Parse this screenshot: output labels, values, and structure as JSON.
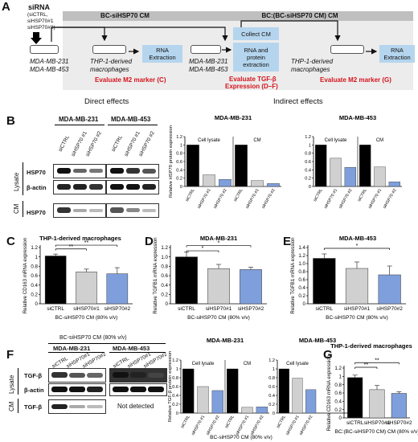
{
  "panels": {
    "a": "A",
    "b": "B",
    "c": "C",
    "d": "D",
    "e": "E",
    "f": "F",
    "g": "G"
  },
  "schematic": {
    "sirna_title": "siRNA",
    "sirna_list": [
      "(siCTRL,",
      "siHSP70#1",
      "siHSP70#2)"
    ],
    "cells_line1": "MDA-MB-231",
    "cells_line2": "MDA-MB-453",
    "direct_header": "BC-siHSP70 CM",
    "indirect_header": "BC:(BC-siHSP70 CM) CM",
    "thp1_line1": "THP-1-derived",
    "thp1_line2": "macrophages",
    "rna_extraction": "RNA Extraction",
    "eval_m2_c": "Evaluate M2 marker (C)",
    "direct_effects": "Direct effects",
    "collect_cm": "Collect CM",
    "rna_protein": [
      "RNA and",
      "protein",
      "extraction"
    ],
    "eval_tgf_1": "Evaluate TGF-β",
    "eval_tgf_2": "Expression (D–F)",
    "eval_m2_g": "Evaluate M2 marker (G)",
    "indirect_effects": "Indirect effects"
  },
  "blot_b": {
    "cell1": "MDA-MB-231",
    "cell2": "MDA-MB-453",
    "lanes": [
      "siCTRL",
      "siHSP70 #1",
      "siHSP70 #2"
    ],
    "row_hsp70": "HSP70",
    "row_actin": "β-actin",
    "group_lysate": "Lysate",
    "group_cm": "CM"
  },
  "blot_f": {
    "top": "BC-siHSP70 CM (80% v/v)",
    "cell1": "MDA-MB-231",
    "cell2": "MDA-MB-453",
    "lanes": [
      "siCTRL",
      "siHSP70#1",
      "siHSP70#2"
    ],
    "row_tgf": "TGF-β",
    "row_actin": "β-actin",
    "group_lysate": "Lysate",
    "group_cm": "CM",
    "not_detected": "Not detected"
  },
  "chart_data": [
    {
      "id": "B-right",
      "type": "bar",
      "ylabel": "Relative HSP70 protein expression",
      "ylim": [
        0,
        1.2
      ],
      "yticks": [
        "0",
        "0.2",
        "0.4",
        "0.6",
        "0.8",
        "1",
        "1.2"
      ],
      "groups": [
        {
          "title": "MDA-MB-231",
          "subgroups": [
            {
              "label": "Cell lysate",
              "categories": [
                "siCTRL",
                "siHSP70 #1",
                "siHSP70 #2"
              ],
              "values": [
                1.0,
                0.28,
                0.17
              ]
            },
            {
              "label": "CM",
              "categories": [
                "siCTRL",
                "siHSP70 #1",
                "siHSP70 #2"
              ],
              "values": [
                1.0,
                0.14,
                0.07
              ]
            }
          ]
        },
        {
          "title": "MDA-MB-453",
          "subgroups": [
            {
              "label": "Cell lysate",
              "categories": [
                "siCTRL",
                "siHSP70 #1",
                "siHSP70 #2"
              ],
              "values": [
                1.0,
                0.68,
                0.46
              ]
            },
            {
              "label": "CM",
              "categories": [
                "siCTRL",
                "siHSP70 #1",
                "siHSP70 #2"
              ],
              "values": [
                1.0,
                0.47,
                0.11
              ]
            }
          ]
        }
      ],
      "colors": [
        "#000000",
        "#d0d0d0",
        "#7f9fdc"
      ]
    },
    {
      "id": "C",
      "type": "bar",
      "title": "THP-1-derived macrophages",
      "ylabel": "Relative CD163 mRNA expression",
      "xlabel": "BC-siHSP70 CM (80% v/v)",
      "ylim": [
        0,
        1.2
      ],
      "yticks": [
        "0",
        "0.2",
        "0.4",
        "0.6",
        "0.8",
        "1",
        "1.2"
      ],
      "categories": [
        "siCTRL",
        "siHSP70#1",
        "siHSP70#2"
      ],
      "values": [
        1.02,
        0.68,
        0.64
      ],
      "errors": [
        0.04,
        0.06,
        0.13
      ],
      "significance": [
        "**",
        "**"
      ],
      "colors": [
        "#000000",
        "#d0d0d0",
        "#7f9fdc"
      ]
    },
    {
      "id": "D",
      "type": "bar",
      "title": "MDA-MB-231",
      "ylabel": "Relative TGFB1 mRNA expression",
      "xlabel": "BC-siHSP70 CM (80% v/v)",
      "ylim": [
        0,
        1.2
      ],
      "yticks": [
        "0",
        "0.2",
        "0.4",
        "0.6",
        "0.8",
        "1.0",
        "1.2"
      ],
      "categories": [
        "siCTRL",
        "siHSP70#1",
        "siHSP70#2"
      ],
      "values": [
        1.0,
        0.75,
        0.73
      ],
      "errors": [
        0.1,
        0.09,
        0.05
      ],
      "significance": [
        "*",
        "*"
      ],
      "colors": [
        "#000000",
        "#d0d0d0",
        "#7f9fdc"
      ]
    },
    {
      "id": "E",
      "type": "bar",
      "title": "MDA-MB-453",
      "ylabel": "Relative TGFB1 mRNA expression",
      "xlabel": "BC-siHSP70 CM (80% v/v)",
      "ylim": [
        0,
        1.4
      ],
      "yticks": [
        "0",
        "0.2",
        "0.4",
        "0.6",
        "0.8",
        "1.0",
        "1.2",
        "1.4"
      ],
      "categories": [
        "siCTRL",
        "siHSP70#1",
        "siHSP70#2"
      ],
      "values": [
        1.13,
        0.88,
        0.72
      ],
      "errors": [
        0.11,
        0.16,
        0.22
      ],
      "significance": [
        "*"
      ],
      "colors": [
        "#000000",
        "#d0d0d0",
        "#7f9fdc"
      ]
    },
    {
      "id": "F-right",
      "type": "bar",
      "ylabel": "Relative TGF-β protein expression",
      "xlabel": "BC-siHSP70 CM (80% v/v)",
      "ylim": [
        0,
        1.2
      ],
      "yticks": [
        "0",
        "0.2",
        "0.4",
        "0.6",
        "0.8",
        "1",
        "1.2"
      ],
      "groups": [
        {
          "title": "MDA-MB-231",
          "subgroups": [
            {
              "label": "Cell lysate",
              "categories": [
                "siCTRL",
                "siHSP70 #1",
                "siHSP70 #2"
              ],
              "values": [
                1.0,
                0.6,
                0.51
              ]
            },
            {
              "label": "CM",
              "categories": [
                "siCTRL",
                "siHSP70 #1",
                "siHSP70 #2"
              ],
              "values": [
                1.0,
                0.13,
                0.14
              ]
            }
          ]
        },
        {
          "title": "MDA-MB-453",
          "subgroups": [
            {
              "label": "Cell lysate",
              "categories": [
                "siCTRL",
                "siHSP70 #1",
                "siHSP70 #2"
              ],
              "values": [
                1.0,
                0.79,
                0.53
              ]
            }
          ]
        }
      ],
      "colors": [
        "#000000",
        "#d0d0d0",
        "#7f9fdc"
      ]
    },
    {
      "id": "G",
      "type": "bar",
      "title": "THP-1-derived macrophages",
      "ylabel": "Relative CD163 mRNA expression",
      "xlabel": "BC:(BC-siHSP70 CM) CM (80% v/v)",
      "ylim": [
        0,
        1.2
      ],
      "yticks": [
        "0",
        "0.2",
        "0.4",
        "0.6",
        "0.8",
        "1",
        "1.2"
      ],
      "categories": [
        "siCTRL",
        "siHSP70#1",
        "siHSP70#2"
      ],
      "values": [
        0.97,
        0.68,
        0.59
      ],
      "errors": [
        0.06,
        0.1,
        0.04
      ],
      "significance": [
        "**",
        "**"
      ],
      "colors": [
        "#000000",
        "#d0d0d0",
        "#7f9fdc"
      ]
    }
  ]
}
